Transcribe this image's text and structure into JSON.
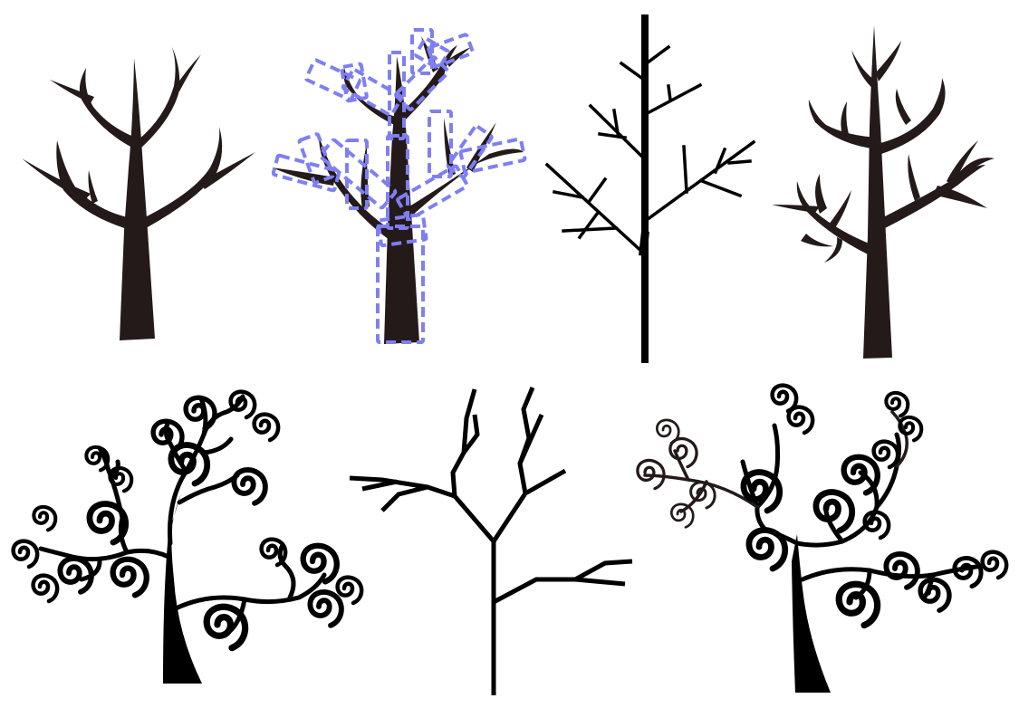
{
  "canvas": {
    "background": "#ffffff"
  },
  "colors": {
    "dark_tree": "#241a1a",
    "black_tree": "#000000",
    "selection_outline": "#7f7ff2"
  },
  "trees": [
    {
      "id": "tree-1",
      "style": "tapered-curved-branches",
      "selected": false
    },
    {
      "id": "tree-2",
      "style": "tapered-curved-branches",
      "selected": true
    },
    {
      "id": "tree-3",
      "style": "straight-line-branches",
      "selected": false
    },
    {
      "id": "tree-4",
      "style": "tapered-curved-branches-tall",
      "selected": false
    },
    {
      "id": "tree-5",
      "style": "swirl-branches",
      "selected": false
    },
    {
      "id": "tree-6",
      "style": "angular-line-branches",
      "selected": false
    },
    {
      "id": "tree-7",
      "style": "swirl-branches",
      "selected": false
    }
  ]
}
